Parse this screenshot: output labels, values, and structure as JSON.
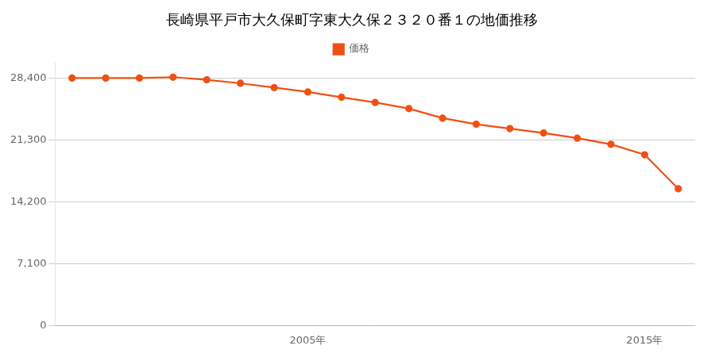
{
  "chart_data": {
    "type": "line",
    "title": "長崎県平戸市大久保町字東大久保２３２０番１の地価推移",
    "x": [
      1998,
      1999,
      2000,
      2001,
      2002,
      2003,
      2004,
      2005,
      2006,
      2007,
      2008,
      2009,
      2010,
      2011,
      2012,
      2013,
      2014,
      2015,
      2016
    ],
    "series": [
      {
        "name": "価格",
        "color": "#f05014",
        "marker": "circle",
        "values": [
          28400,
          28400,
          28400,
          28500,
          28200,
          27800,
          27300,
          26800,
          26200,
          25600,
          24900,
          23800,
          23100,
          22600,
          22100,
          21500,
          20800,
          19600,
          15700
        ]
      }
    ],
    "xlim": [
      1997.5,
      2016.5
    ],
    "xticks": [
      {
        "value": 2005,
        "label": "2005年"
      },
      {
        "value": 2015,
        "label": "2015年"
      }
    ],
    "ylim": [
      0,
      30200
    ],
    "yticks": [
      0,
      {
        "value": 7100,
        "label": "7,100"
      },
      {
        "value": 14200,
        "label": "14,200"
      },
      {
        "value": 21300,
        "label": "21,300"
      },
      {
        "value": 28400,
        "label": "28,400"
      }
    ],
    "grid": "y",
    "legend": "top"
  }
}
